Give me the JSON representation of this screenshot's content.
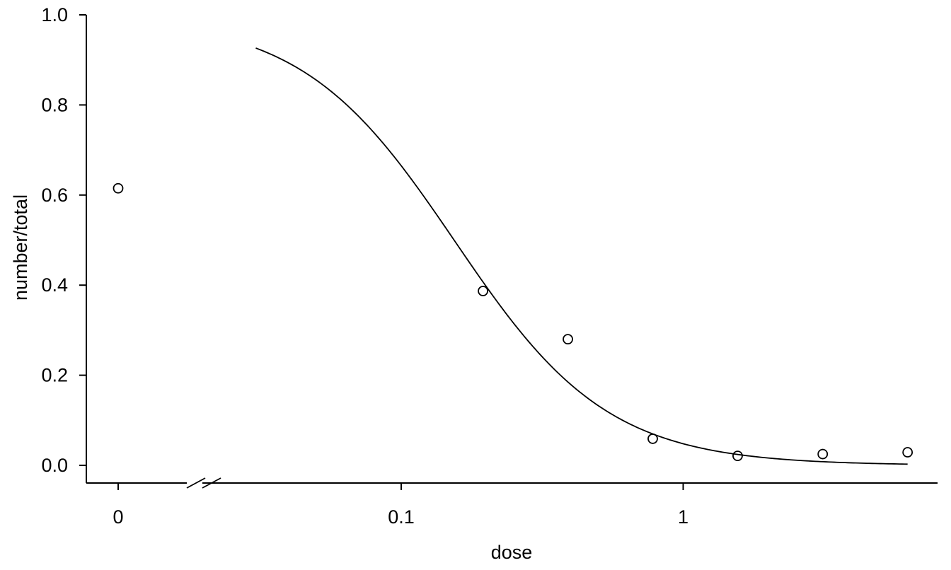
{
  "chart_data": {
    "type": "scatter",
    "xlabel": "dose",
    "ylabel": "number/total",
    "x_scale": "log",
    "x_axis_break": true,
    "ylim": [
      0,
      1
    ],
    "x_ticks": [
      {
        "value": 0,
        "label": "0"
      },
      {
        "value": 0.1,
        "label": "0.1"
      },
      {
        "value": 1,
        "label": "1"
      }
    ],
    "y_ticks": [
      {
        "value": 0,
        "label": "0.0"
      },
      {
        "value": 0.2,
        "label": "0.2"
      },
      {
        "value": 0.4,
        "label": "0.4"
      },
      {
        "value": 0.6,
        "label": "0.6"
      },
      {
        "value": 0.8,
        "label": "0.8"
      },
      {
        "value": 1.0,
        "label": "1.0"
      }
    ],
    "points": [
      {
        "x": 0,
        "y": 0.615
      },
      {
        "x": 0.195,
        "y": 0.387
      },
      {
        "x": 0.39,
        "y": 0.28
      },
      {
        "x": 0.78,
        "y": 0.059
      },
      {
        "x": 1.56,
        "y": 0.021
      },
      {
        "x": 3.125,
        "y": 0.025
      },
      {
        "x": 6.25,
        "y": 0.029
      }
    ],
    "fitted_curve": {
      "model": "log-logistic",
      "upper": 0.995,
      "lower": 0.0,
      "ed50": 0.155,
      "slope": 1.6,
      "x_range": [
        0.0305,
        6.25
      ]
    },
    "grid": false,
    "legend": "none"
  }
}
